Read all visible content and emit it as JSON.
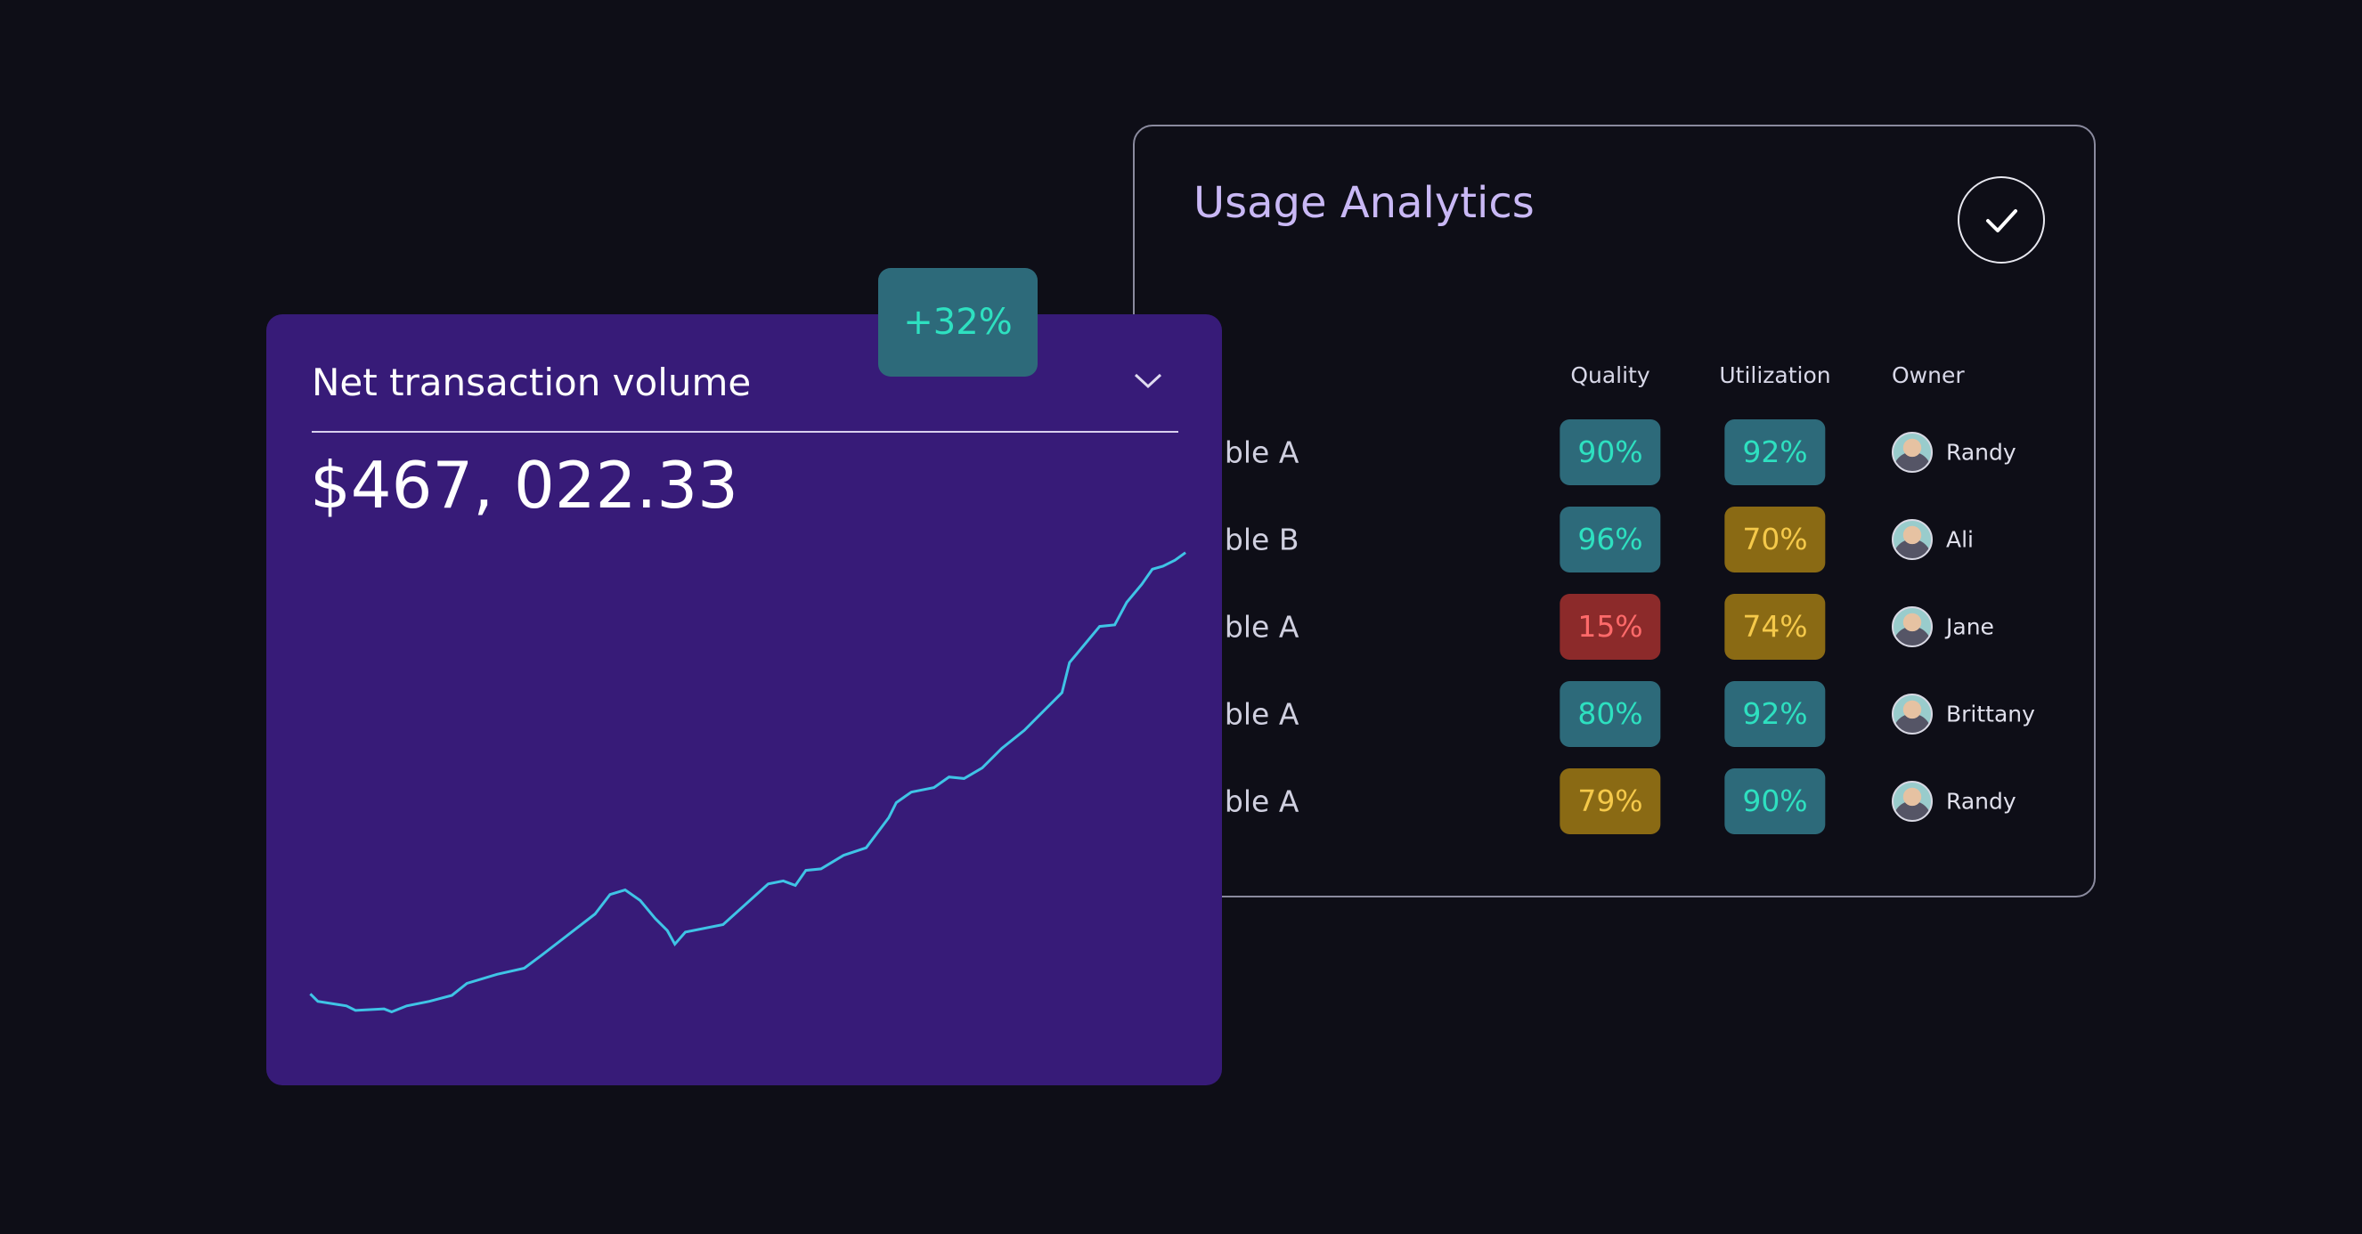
{
  "volume_card": {
    "title": "Net transaction volume",
    "amount": "$467, 022.33",
    "badge": "+32%"
  },
  "analytics": {
    "title": "Usage Analytics",
    "columns": [
      "Quality",
      "Utilization",
      "Owner"
    ],
    "rows": [
      {
        "name": "Table A",
        "quality": {
          "text": "90%",
          "color": "teal"
        },
        "utilization": {
          "text": "92%",
          "color": "teal"
        },
        "owner": "Randy"
      },
      {
        "name": "Table B",
        "quality": {
          "text": "96%",
          "color": "teal"
        },
        "utilization": {
          "text": "70%",
          "color": "amber"
        },
        "owner": "Ali"
      },
      {
        "name": "Table A",
        "quality": {
          "text": "15%",
          "color": "red"
        },
        "utilization": {
          "text": "74%",
          "color": "amber"
        },
        "owner": "Jane"
      },
      {
        "name": "Table A",
        "quality": {
          "text": "80%",
          "color": "teal"
        },
        "utilization": {
          "text": "92%",
          "color": "teal"
        },
        "owner": "Brittany"
      },
      {
        "name": "Table A",
        "quality": {
          "text": "79%",
          "color": "amber"
        },
        "utilization": {
          "text": "90%",
          "color": "teal"
        },
        "owner": "Randy"
      }
    ]
  }
}
